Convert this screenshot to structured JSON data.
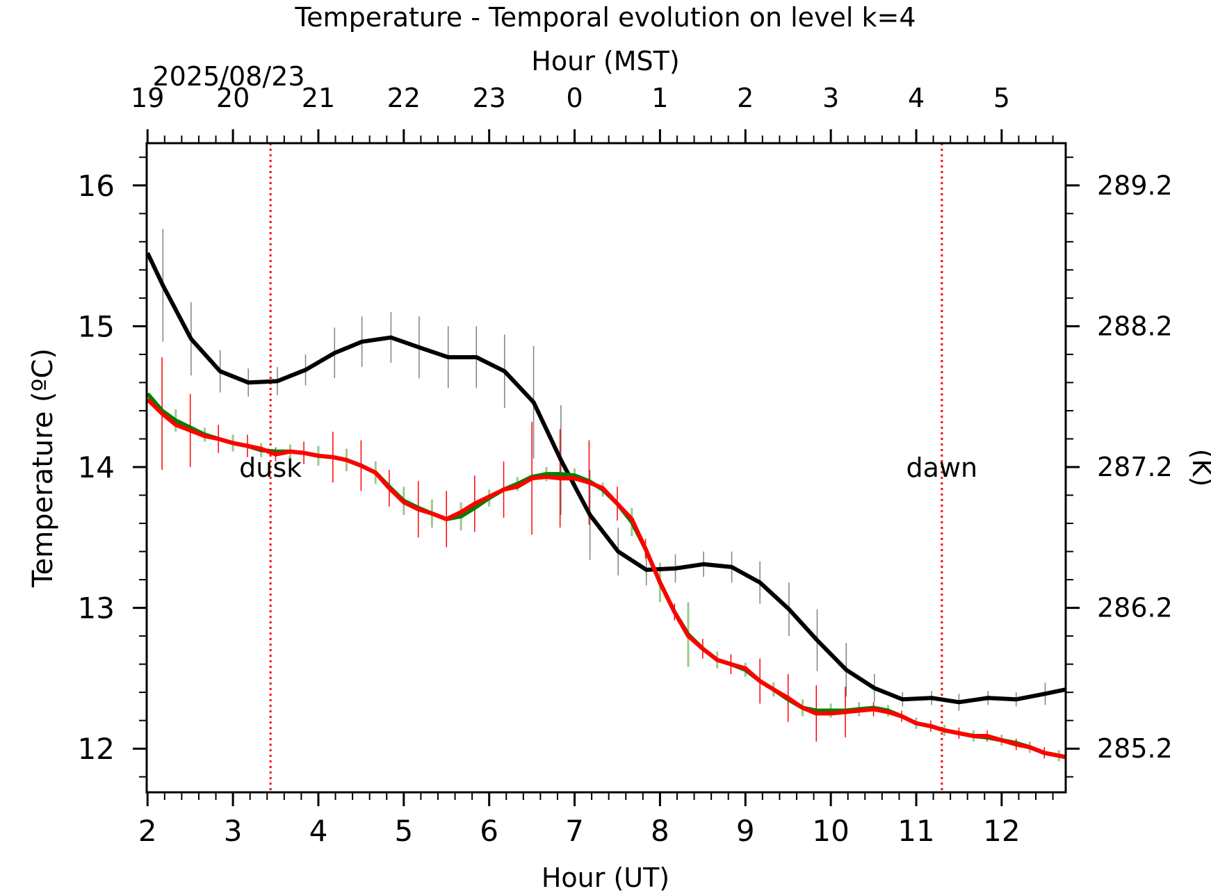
{
  "chart_data": {
    "type": "line",
    "title": "Temperature - Temporal evolution on level k=4",
    "xlabel": "Hour (UT)",
    "x2label": "Hour (MST)",
    "ylabel": "Temperature (ºC)",
    "y2label": "(K)",
    "date_label": "2025/08/23",
    "xlim": [
      1.99,
      12.75
    ],
    "xticks": [
      2,
      3,
      4,
      5,
      6,
      7,
      8,
      9,
      10,
      11,
      12
    ],
    "x2ticks": [
      {
        "value": 2,
        "label": "19"
      },
      {
        "value": 3,
        "label": "20"
      },
      {
        "value": 4,
        "label": "21"
      },
      {
        "value": 5,
        "label": "22"
      },
      {
        "value": 6,
        "label": "23"
      },
      {
        "value": 7,
        "label": "0"
      },
      {
        "value": 8,
        "label": "1"
      },
      {
        "value": 9,
        "label": "2"
      },
      {
        "value": 10,
        "label": "3"
      },
      {
        "value": 11,
        "label": "4"
      },
      {
        "value": 12,
        "label": "5"
      }
    ],
    "xminorticks": [
      2.2,
      2.4,
      2.6,
      2.8,
      3.2,
      3.4,
      3.6,
      3.8,
      4.2,
      4.4,
      4.6,
      4.8,
      5.2,
      5.4,
      5.6,
      5.8,
      6.2,
      6.4,
      6.6,
      6.8,
      7.2,
      7.4,
      7.6,
      7.8,
      8.2,
      8.4,
      8.6,
      8.8,
      9.2,
      9.4,
      9.6,
      9.8,
      10.2,
      10.4,
      10.6,
      10.8,
      11.2,
      11.4,
      11.6,
      11.8,
      12.2,
      12.4,
      12.6
    ],
    "ylim": [
      11.69,
      16.3
    ],
    "yticks": [
      12,
      13,
      14,
      15,
      16
    ],
    "yminorticks": [
      11.8,
      12.2,
      12.4,
      12.6,
      12.8,
      13.2,
      13.4,
      13.6,
      13.8,
      14.2,
      14.4,
      14.6,
      14.8,
      15.2,
      15.4,
      15.6,
      15.8,
      16.2
    ],
    "y2lim": [
      284.84,
      289.45
    ],
    "y2ticks": [
      {
        "value": 285.15,
        "label": "285.2"
      },
      {
        "value": 286.15,
        "label": "286.2"
      },
      {
        "value": 287.15,
        "label": "287.2"
      },
      {
        "value": 288.15,
        "label": "288.2"
      },
      {
        "value": 289.15,
        "label": "289.2"
      }
    ],
    "grid": false,
    "vlines": [
      {
        "x": 3.44,
        "label": "dusk",
        "color": "#ff0000"
      },
      {
        "x": 11.3,
        "label": "dawn",
        "color": "#ff0000"
      }
    ],
    "series": [
      {
        "color": "#000000",
        "error_color": "#808080",
        "x": [
          2.0,
          2.18,
          2.51,
          2.85,
          3.18,
          3.52,
          3.85,
          4.19,
          4.51,
          4.85,
          5.18,
          5.52,
          5.85,
          6.18,
          6.52,
          6.84,
          7.18,
          7.51,
          7.84,
          8.18,
          8.51,
          8.84,
          9.17,
          9.51,
          9.84,
          10.18,
          10.51,
          10.84,
          11.18,
          11.5,
          11.84,
          12.17,
          12.51,
          12.75
        ],
        "values": [
          15.52,
          15.29,
          14.91,
          14.68,
          14.6,
          14.61,
          14.69,
          14.81,
          14.89,
          14.92,
          14.85,
          14.78,
          14.78,
          14.68,
          14.46,
          14.05,
          13.66,
          13.4,
          13.27,
          13.28,
          13.31,
          13.29,
          13.18,
          12.99,
          12.77,
          12.56,
          12.43,
          12.35,
          12.36,
          12.33,
          12.36,
          12.35,
          12.39,
          12.42
        ],
        "errors": [
          null,
          0.4,
          0.26,
          0.15,
          0.1,
          0.1,
          0.11,
          0.18,
          0.18,
          0.18,
          0.22,
          0.22,
          0.22,
          0.26,
          0.4,
          0.39,
          0.32,
          0.17,
          0.11,
          0.1,
          0.09,
          0.11,
          0.15,
          0.19,
          0.22,
          0.19,
          0.1,
          0.05,
          0.05,
          0.06,
          0.05,
          0.05,
          0.08,
          null
        ]
      },
      {
        "color": "#008000",
        "error_color": "#9cc98a",
        "x": [
          2.0,
          2.17,
          2.33,
          2.5,
          2.67,
          2.83,
          3.0,
          3.17,
          3.33,
          3.5,
          3.67,
          3.83,
          4.0,
          4.17,
          4.33,
          4.5,
          4.67,
          4.83,
          5.0,
          5.17,
          5.33,
          5.5,
          5.67,
          5.83,
          6.0,
          6.17,
          6.33,
          6.5,
          6.67,
          6.83,
          7.0,
          7.17,
          7.33,
          7.5,
          7.67,
          7.83,
          8.0,
          8.17,
          8.33,
          8.5,
          8.67,
          8.83,
          9.0,
          9.17,
          9.33,
          9.5,
          9.67,
          9.83,
          10.0,
          10.17,
          10.33,
          10.5,
          10.67,
          10.83,
          11.0,
          11.17,
          11.33,
          11.5,
          11.67,
          11.83,
          12.0,
          12.17,
          12.33,
          12.5,
          12.67,
          12.75
        ],
        "values": [
          14.52,
          14.4,
          14.33,
          14.28,
          14.23,
          14.2,
          14.17,
          14.15,
          14.12,
          14.11,
          14.11,
          14.1,
          14.08,
          14.07,
          14.05,
          14.01,
          13.96,
          13.86,
          13.76,
          13.71,
          13.67,
          13.63,
          13.65,
          13.71,
          13.78,
          13.84,
          13.88,
          13.93,
          13.95,
          13.95,
          13.94,
          13.9,
          13.84,
          13.74,
          13.61,
          13.42,
          13.18,
          12.97,
          12.81,
          12.71,
          12.63,
          12.6,
          12.56,
          12.48,
          12.42,
          12.35,
          12.29,
          12.27,
          12.27,
          12.27,
          12.28,
          12.29,
          12.27,
          12.23,
          12.18,
          12.16,
          12.13,
          12.11,
          12.09,
          12.08,
          12.06,
          12.04,
          12.01,
          11.97,
          11.95,
          11.94
        ],
        "errors": [
          null,
          null,
          0.08,
          null,
          0.05,
          null,
          0.06,
          null,
          0.05,
          null,
          0.05,
          null,
          0.07,
          null,
          0.08,
          null,
          0.08,
          null,
          0.1,
          null,
          0.1,
          null,
          0.1,
          null,
          0.06,
          null,
          0.05,
          null,
          0.05,
          null,
          0.05,
          null,
          0.05,
          null,
          0.1,
          null,
          0.14,
          null,
          0.23,
          null,
          0.06,
          null,
          0.05,
          null,
          0.05,
          null,
          0.06,
          null,
          0.05,
          null,
          0.05,
          null,
          0.04,
          null,
          0.04,
          null,
          0.04,
          null,
          0.04,
          null,
          0.04,
          null,
          0.04,
          null,
          0.04,
          null
        ]
      },
      {
        "color": "#ff0000",
        "error_color": "#ff0000",
        "x": [
          2.0,
          2.17,
          2.33,
          2.5,
          2.67,
          2.83,
          3.0,
          3.17,
          3.33,
          3.5,
          3.67,
          3.83,
          4.0,
          4.17,
          4.33,
          4.5,
          4.67,
          4.83,
          5.0,
          5.17,
          5.33,
          5.5,
          5.67,
          5.83,
          6.0,
          6.17,
          6.33,
          6.5,
          6.67,
          6.83,
          7.0,
          7.17,
          7.33,
          7.5,
          7.67,
          7.83,
          8.0,
          8.17,
          8.33,
          8.5,
          8.67,
          8.83,
          9.0,
          9.17,
          9.33,
          9.5,
          9.67,
          9.83,
          10.0,
          10.17,
          10.33,
          10.5,
          10.67,
          10.83,
          11.0,
          11.17,
          11.33,
          11.5,
          11.67,
          11.83,
          12.0,
          12.17,
          12.33,
          12.5,
          12.67,
          12.75
        ],
        "values": [
          14.48,
          14.38,
          14.3,
          14.26,
          14.22,
          14.2,
          14.17,
          14.15,
          14.13,
          14.09,
          14.11,
          14.1,
          14.08,
          14.07,
          14.05,
          14.01,
          13.96,
          13.85,
          13.75,
          13.7,
          13.67,
          13.63,
          13.68,
          13.74,
          13.79,
          13.84,
          13.86,
          13.92,
          13.93,
          13.92,
          13.92,
          13.89,
          13.85,
          13.74,
          13.63,
          13.42,
          13.18,
          12.97,
          12.8,
          12.71,
          12.63,
          12.6,
          12.57,
          12.48,
          12.42,
          12.36,
          12.29,
          12.25,
          12.25,
          12.26,
          12.27,
          12.28,
          12.26,
          12.23,
          12.18,
          12.16,
          12.13,
          12.11,
          12.09,
          12.09,
          12.06,
          12.03,
          12.01,
          11.97,
          11.95,
          11.94
        ],
        "errors": [
          null,
          0.4,
          null,
          0.26,
          null,
          0.1,
          null,
          0.08,
          null,
          0.05,
          null,
          0.08,
          null,
          0.18,
          null,
          0.18,
          null,
          0.13,
          null,
          0.2,
          null,
          0.2,
          null,
          0.2,
          null,
          0.2,
          null,
          0.4,
          null,
          0.35,
          null,
          0.3,
          null,
          0.12,
          null,
          0.07,
          null,
          0.06,
          null,
          0.07,
          null,
          0.07,
          null,
          0.16,
          null,
          0.17,
          null,
          0.2,
          null,
          0.18,
          null,
          0.05,
          null,
          0.04,
          null,
          0.04,
          null,
          0.04,
          null,
          0.04,
          null,
          0.04,
          null,
          0.04,
          null,
          null
        ]
      }
    ]
  }
}
